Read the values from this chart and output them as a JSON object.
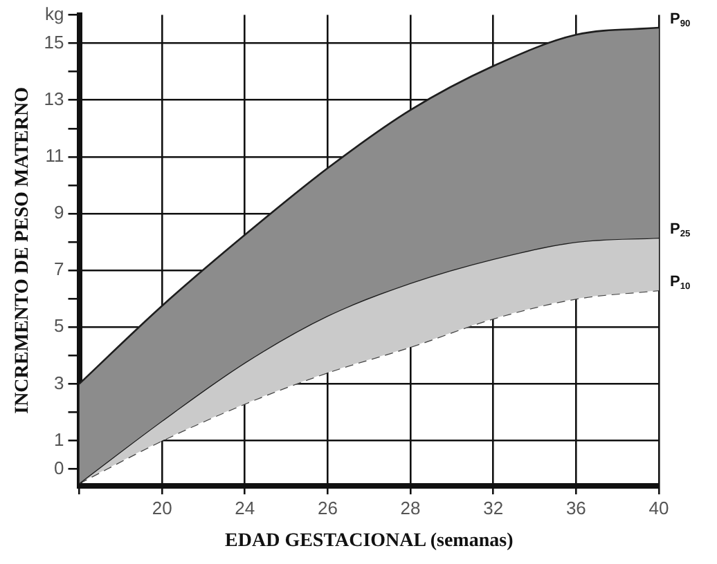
{
  "chart_data": {
    "type": "area",
    "xlabel": "EDAD GESTACIONAL (semanas)",
    "ylabel": "INCREMENTO DE PESO MATERNO",
    "categories": [
      null,
      "20",
      "24",
      "26",
      "28",
      "32",
      "36",
      "40"
    ],
    "ylim": [
      -0.6,
      16
    ],
    "yticks": [
      0,
      1,
      {
        "value": 2,
        "label": null
      },
      3,
      {
        "value": 4,
        "label": null
      },
      5,
      {
        "value": 6,
        "label": null
      },
      7,
      {
        "value": 8,
        "label": null
      },
      9,
      {
        "value": 10,
        "label": null
      },
      11,
      {
        "value": 12,
        "label": null
      },
      13,
      {
        "value": 14,
        "label": null
      },
      15,
      {
        "value": 16,
        "label": "kg"
      }
    ],
    "grid": true,
    "legend": false,
    "series": [
      {
        "name": "P$_{90}$",
        "color": "#8c8c8c",
        "values": [
          3,
          5.75,
          8.25,
          10.6,
          12.65,
          14.2,
          15.3,
          15.55
        ]
      },
      {
        "name": "P$_{25}$",
        "color": "#cacaca",
        "values": [
          -0.5,
          1.7,
          3.75,
          5.4,
          6.55,
          7.4,
          8.0,
          8.15
        ]
      },
      {
        "name": "P$_{10}$",
        "type": "line",
        "color": "#444444",
        "line_style": "dashed",
        "values": [
          -0.5,
          1.0,
          2.3,
          3.4,
          4.3,
          5.3,
          6.0,
          6.3
        ]
      }
    ]
  }
}
